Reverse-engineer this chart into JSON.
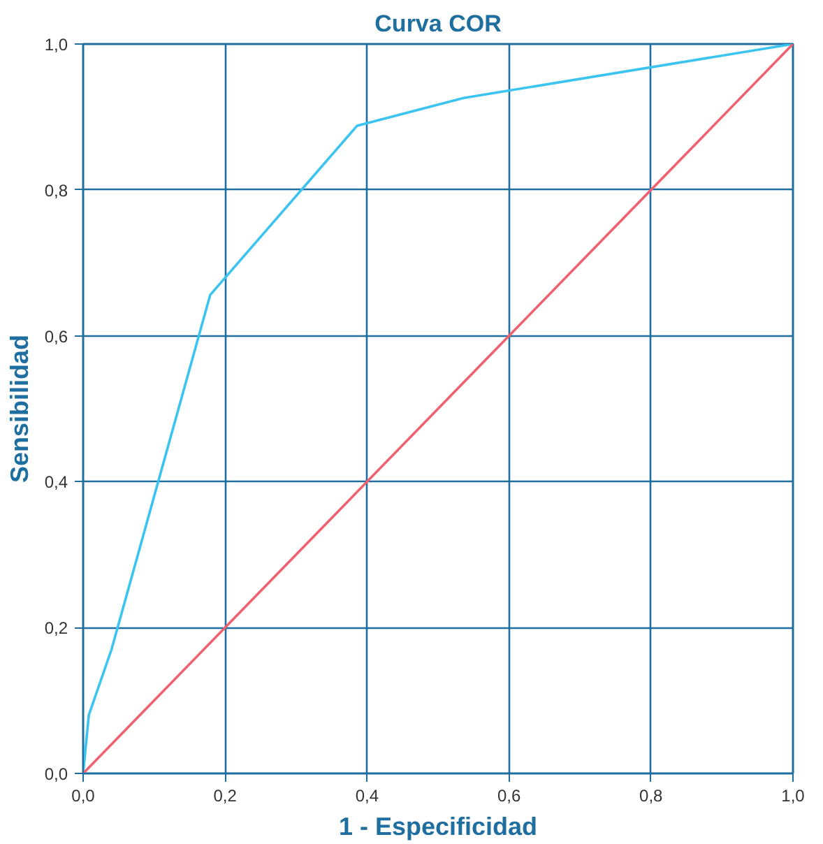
{
  "chart_data": {
    "type": "line",
    "title": "Curva COR",
    "xlabel": "1 - Especificidad",
    "ylabel": "Sensibilidad",
    "xlim": [
      0,
      1
    ],
    "ylim": [
      0,
      1
    ],
    "xticks": [
      {
        "value": 0,
        "label": "0,0"
      },
      {
        "value": 0.2,
        "label": "0,2"
      },
      {
        "value": 0.4,
        "label": "0,4"
      },
      {
        "value": 0.6,
        "label": "0,6"
      },
      {
        "value": 0.8,
        "label": "0,8"
      },
      {
        "value": 1,
        "label": "1,0"
      }
    ],
    "yticks": [
      {
        "value": 0,
        "label": "0,0"
      },
      {
        "value": 0.2,
        "label": "0,2"
      },
      {
        "value": 0.4,
        "label": "0,4"
      },
      {
        "value": 0.6,
        "label": "0,6"
      },
      {
        "value": 0.8,
        "label": "0,8"
      },
      {
        "value": 1,
        "label": "1,0"
      }
    ],
    "grid": true,
    "series": [
      {
        "color": "#3cc4f0",
        "x": [
          0,
          0.008,
          0.04,
          0.179,
          0.386,
          0.536,
          1
        ],
        "values": [
          0,
          0.08,
          0.17,
          0.656,
          0.888,
          0.926,
          1
        ]
      },
      {
        "color": "#f0606e",
        "x": [
          0,
          1
        ],
        "values": [
          0,
          1
        ]
      }
    ]
  }
}
